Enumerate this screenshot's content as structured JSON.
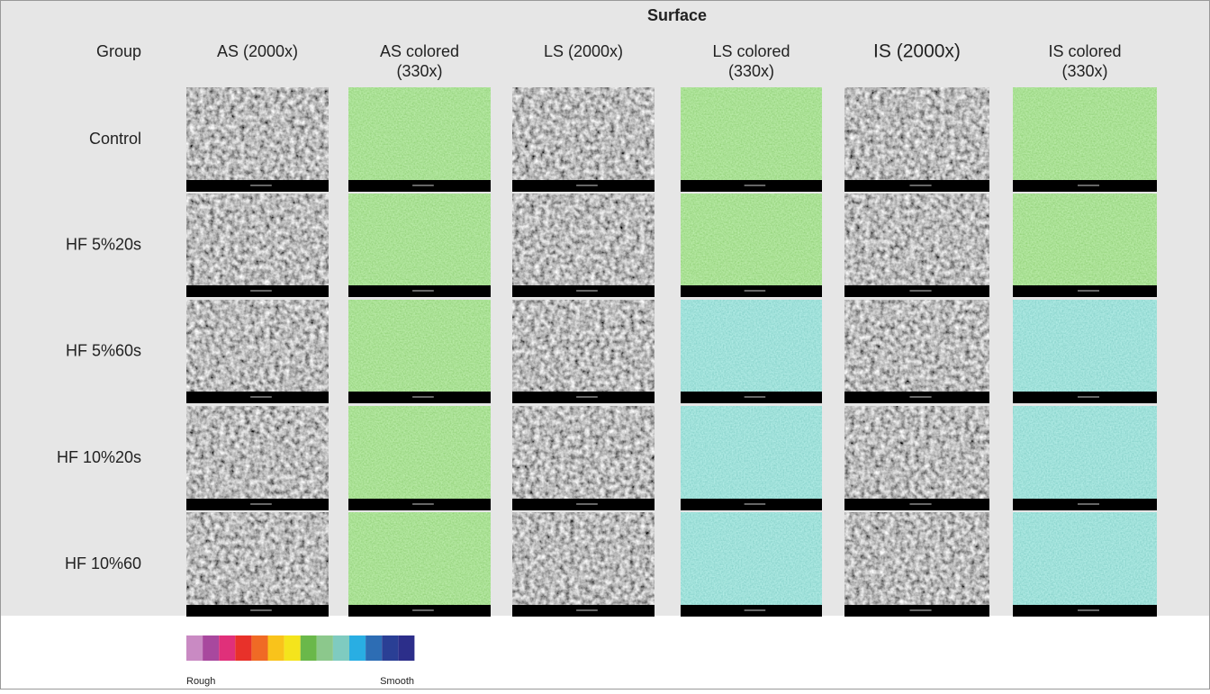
{
  "header": {
    "title": "Surface",
    "group_label": "Group",
    "columns": [
      [
        "AS (2000x)"
      ],
      [
        "AS colored",
        "(330x)"
      ],
      [
        "LS (2000x)"
      ],
      [
        "LS colored",
        "(330x)"
      ],
      [
        "IS (2000x)"
      ],
      [
        "IS colored",
        "(330x)"
      ]
    ]
  },
  "rows": [
    "Control",
    "HF 5%20s",
    "HF 5%60s",
    "HF 10%20s",
    "HF 10%60"
  ],
  "legend": {
    "rough": "Rough",
    "smooth": "Smooth"
  }
}
